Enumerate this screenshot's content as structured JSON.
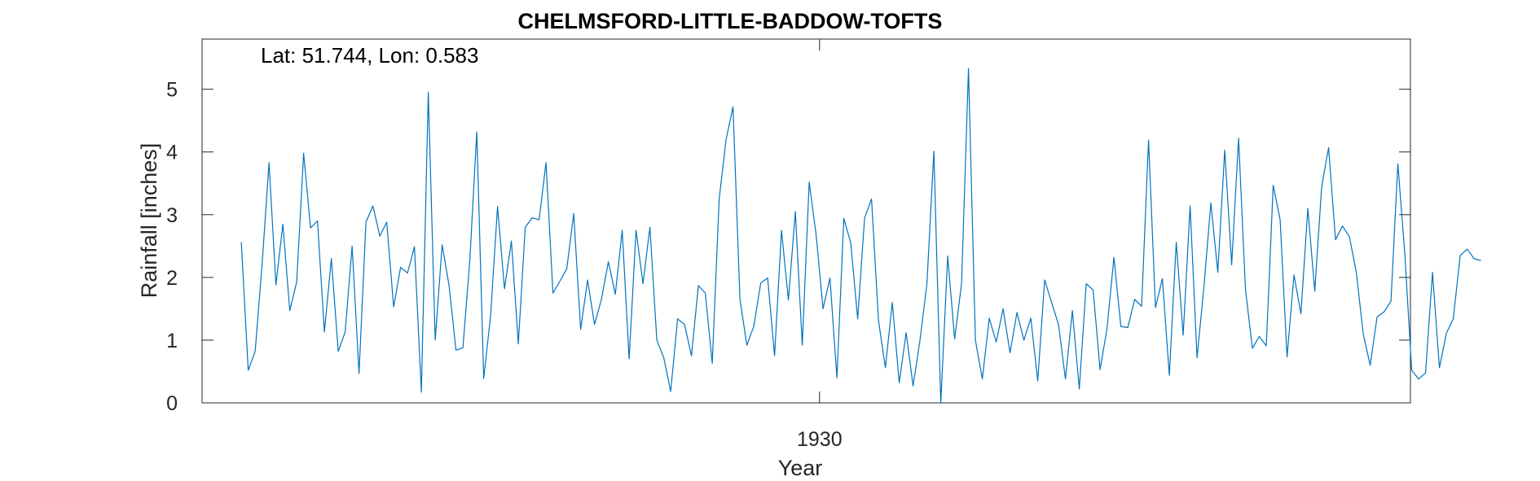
{
  "chart_data": {
    "type": "line",
    "title": "CHELMSFORD-LITTLE-BADDOW-TOFTS",
    "annotation": "Lat: 51.744, Lon: 0.583",
    "xlabel": "Year",
    "ylabel": "Rainfall [inches]",
    "ylim": [
      0,
      5.8
    ],
    "yticks": [
      0,
      1,
      2,
      3,
      4,
      5
    ],
    "xticks": [
      {
        "value": 1930,
        "label": "1930"
      }
    ],
    "xlim": [
      1922.57,
      1937.11
    ],
    "x_start": 1923.042,
    "x_step": 0.0833333,
    "grid": false,
    "series": [
      {
        "color": "#0072BD",
        "values": [
          2.56,
          0.52,
          0.82,
          2.2,
          3.83,
          1.88,
          2.85,
          1.47,
          1.93,
          3.98,
          2.79,
          2.9,
          1.13,
          2.3,
          0.82,
          1.13,
          2.5,
          0.47,
          2.88,
          3.14,
          2.66,
          2.88,
          1.53,
          2.16,
          2.07,
          2.49,
          0.17,
          4.95,
          1.0,
          2.52,
          1.87,
          0.84,
          0.88,
          2.28,
          4.32,
          0.39,
          1.39,
          3.13,
          1.82,
          2.58,
          0.94,
          2.8,
          2.95,
          2.92,
          3.83,
          1.75,
          1.94,
          2.14,
          3.02,
          1.17,
          1.96,
          1.25,
          1.65,
          2.25,
          1.73,
          2.75,
          0.7,
          2.75,
          1.9,
          2.8,
          1.0,
          0.72,
          0.18,
          1.34,
          1.25,
          0.75,
          1.87,
          1.75,
          0.63,
          3.25,
          4.2,
          4.72,
          1.65,
          0.92,
          1.22,
          1.91,
          1.99,
          0.75,
          2.75,
          1.64,
          3.05,
          0.92,
          3.52,
          2.68,
          1.5,
          1.99,
          0.4,
          2.94,
          2.55,
          1.34,
          2.95,
          3.25,
          1.32,
          0.56,
          1.6,
          0.32,
          1.12,
          0.27,
          1.0,
          1.9,
          4.01,
          0.0,
          2.34,
          1.02,
          1.9,
          5.33,
          1.0,
          0.38,
          1.35,
          0.97,
          1.5,
          0.8,
          1.44,
          1.0,
          1.35,
          0.35,
          1.96,
          1.6,
          1.25,
          0.38,
          1.47,
          0.22,
          1.9,
          1.8,
          0.53,
          1.18,
          2.32,
          1.22,
          1.2,
          1.65,
          1.54,
          4.19,
          1.52,
          1.98,
          0.44,
          2.56,
          1.08,
          3.14,
          0.72,
          1.85,
          3.19,
          2.08,
          4.03,
          2.2,
          4.22,
          1.8,
          0.87,
          1.06,
          0.91,
          3.47,
          2.92,
          0.73,
          2.04,
          1.42,
          3.1,
          1.78,
          3.45,
          4.07,
          2.6,
          2.82,
          2.65,
          2.08,
          1.1,
          0.6,
          1.37,
          1.45,
          1.62,
          3.81,
          2.38,
          0.52,
          0.38,
          0.48,
          2.08,
          0.56,
          1.11,
          1.34,
          2.35,
          2.45,
          2.3,
          2.27
        ]
      }
    ]
  }
}
